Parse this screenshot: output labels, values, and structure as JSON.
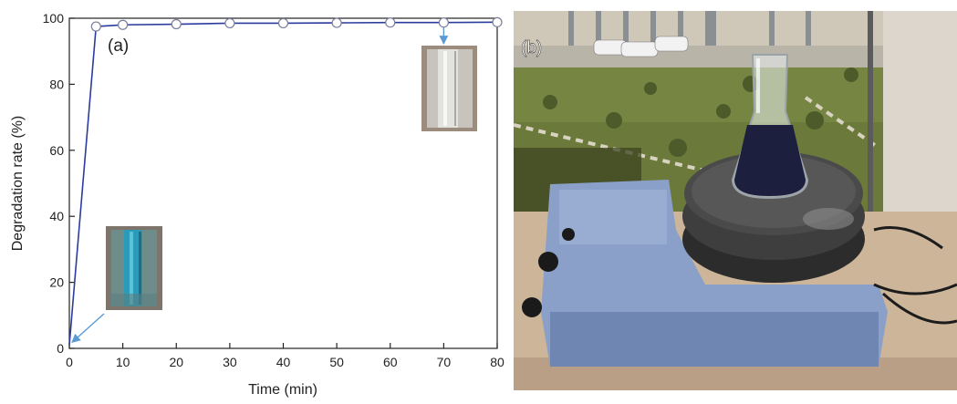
{
  "chart_data": {
    "type": "line",
    "panel_label": "(a)",
    "xlabel": "Time (min)",
    "ylabel": "Degradation rate (%)",
    "xlim": [
      0,
      80
    ],
    "ylim": [
      0,
      100
    ],
    "xticks": [
      0,
      10,
      20,
      30,
      40,
      50,
      60,
      70,
      80
    ],
    "yticks": [
      0,
      20,
      40,
      60,
      80,
      100
    ],
    "grid": false,
    "series": [
      {
        "x": [
          0,
          5,
          10,
          20,
          30,
          40,
          50,
          60,
          70,
          80
        ],
        "y": [
          1,
          97.5,
          98,
          98.2,
          98.5,
          98.5,
          98.6,
          98.7,
          98.7,
          98.8
        ],
        "color": "#2b3c9e",
        "marker": "open-circle"
      }
    ],
    "annotations": [
      {
        "type": "inset-photo",
        "subject": "blue dye solution in test tube",
        "points_to": {
          "x": 0,
          "y": 1
        }
      },
      {
        "type": "inset-photo",
        "subject": "clear solution in test tube",
        "points_to": {
          "x": 70,
          "y": 98.7
        }
      }
    ]
  },
  "photo": {
    "panel_label": "(b)",
    "subject": "erlenmeyer flask with dark solution on magnetic stirrer outdoors in sunlight"
  },
  "colors": {
    "axis": "#222222",
    "series": "#2b3c9e",
    "arrow": "#5a9bd5",
    "inset_blue": "#2a9bb8"
  }
}
